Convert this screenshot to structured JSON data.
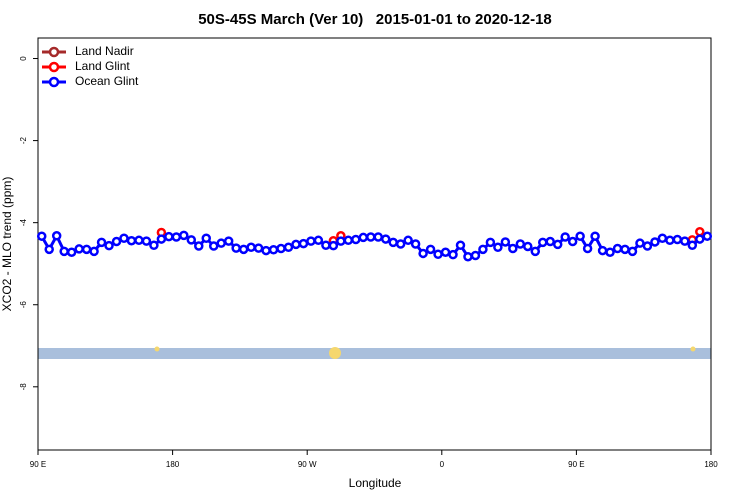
{
  "chart_data": {
    "type": "line",
    "title": "50S-45S March (Ver 10)   2015-01-01 to 2020-12-18",
    "xlabel": "Longitude",
    "ylabel": "XCO2 - MLO trend (ppm)",
    "xlim": [
      90,
      540
    ],
    "xticks": [
      {
        "value": 90,
        "label": "90 E"
      },
      {
        "value": 180,
        "label": "180"
      },
      {
        "value": 270,
        "label": "90 W"
      },
      {
        "value": 360,
        "label": "0"
      },
      {
        "value": 450,
        "label": "90 E"
      },
      {
        "value": 540,
        "label": "180"
      }
    ],
    "ylim": [
      -9.54,
      0.5
    ],
    "yticks": [
      0,
      -2,
      -4,
      -6,
      -8
    ],
    "legend": "top-left",
    "series": [
      {
        "name": "Land Nadir",
        "color": "#a52a2a",
        "x": [],
        "values": []
      },
      {
        "name": "Land Glint",
        "color": "#ff0000",
        "x": [
          172.5,
          287.5,
          292.5,
          527.5,
          532.5
        ],
        "values": [
          -4.24,
          -4.44,
          -4.32,
          -4.42,
          -4.22
        ]
      },
      {
        "name": "Ocean Glint",
        "color": "#0000ff",
        "x": [
          92.5,
          97.5,
          102.5,
          107.5,
          112.5,
          117.5,
          122.5,
          127.5,
          132.5,
          137.5,
          142.5,
          147.5,
          152.5,
          157.5,
          162.5,
          167.5,
          172.5,
          177.5,
          182.5,
          187.5,
          192.5,
          197.5,
          202.5,
          207.5,
          212.5,
          217.5,
          222.5,
          227.5,
          232.5,
          237.5,
          242.5,
          247.5,
          252.5,
          257.5,
          262.5,
          267.5,
          272.5,
          277.5,
          282.5,
          287.5,
          292.5,
          297.5,
          302.5,
          307.5,
          312.5,
          317.5,
          322.5,
          327.5,
          332.5,
          337.5,
          342.5,
          347.5,
          352.5,
          357.5,
          362.5,
          367.5,
          372.5,
          377.5,
          382.5,
          387.5,
          392.5,
          397.5,
          402.5,
          407.5,
          412.5,
          417.5,
          422.5,
          427.5,
          432.5,
          437.5,
          442.5,
          447.5,
          452.5,
          457.5,
          462.5,
          467.5,
          472.5,
          477.5,
          482.5,
          487.5,
          492.5,
          497.5,
          502.5,
          507.5,
          512.5,
          517.5,
          522.5,
          527.5,
          532.5,
          537.5
        ],
        "values": [
          -4.33,
          -4.65,
          -4.32,
          -4.7,
          -4.72,
          -4.64,
          -4.65,
          -4.7,
          -4.48,
          -4.56,
          -4.46,
          -4.38,
          -4.44,
          -4.43,
          -4.45,
          -4.55,
          -4.4,
          -4.34,
          -4.35,
          -4.31,
          -4.42,
          -4.57,
          -4.38,
          -4.57,
          -4.5,
          -4.45,
          -4.62,
          -4.65,
          -4.6,
          -4.62,
          -4.68,
          -4.66,
          -4.63,
          -4.6,
          -4.53,
          -4.51,
          -4.45,
          -4.43,
          -4.55,
          -4.56,
          -4.45,
          -4.43,
          -4.41,
          -4.36,
          -4.35,
          -4.35,
          -4.4,
          -4.48,
          -4.52,
          -4.43,
          -4.52,
          -4.75,
          -4.65,
          -4.77,
          -4.72,
          -4.78,
          -4.55,
          -4.83,
          -4.8,
          -4.65,
          -4.48,
          -4.6,
          -4.47,
          -4.63,
          -4.52,
          -4.58,
          -4.7,
          -4.48,
          -4.46,
          -4.53,
          -4.35,
          -4.46,
          -4.33,
          -4.63,
          -4.33,
          -4.68,
          -4.72,
          -4.63,
          -4.65,
          -4.7,
          -4.5,
          -4.57,
          -4.47,
          -4.38,
          -4.43,
          -4.41,
          -4.45,
          -4.55,
          -4.4,
          -4.33
        ]
      }
    ]
  }
}
